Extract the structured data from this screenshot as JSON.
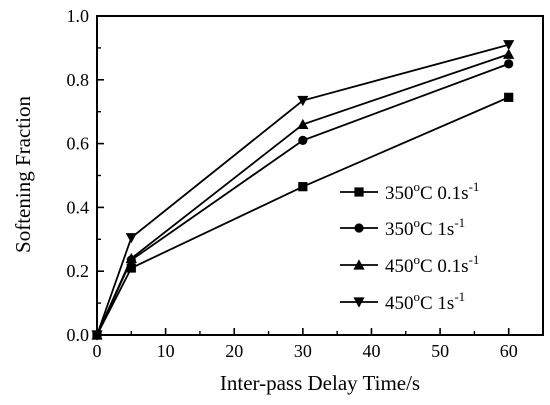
{
  "chart_data": {
    "type": "line",
    "title": "",
    "xlabel": "Inter-pass Delay Time/s",
    "ylabel": "Softening Fraction",
    "xlim": [
      0,
      65
    ],
    "ylim": [
      0.0,
      1.0
    ],
    "xticks": [
      0,
      10,
      20,
      30,
      40,
      50,
      60
    ],
    "xtick_labels": [
      "0",
      "10",
      "20",
      "30",
      "40",
      "50",
      "60"
    ],
    "yticks": [
      0.0,
      0.2,
      0.4,
      0.6,
      0.8,
      1.0
    ],
    "ytick_labels": [
      "0.0",
      "0.2",
      "0.4",
      "0.6",
      "0.8",
      "1.0"
    ],
    "grid": false,
    "legend_position": "bottom-right",
    "x": [
      0,
      5,
      30,
      60
    ],
    "series": [
      {
        "name": "350°C 0.1s⁻¹",
        "marker": "square",
        "values": [
          0.0,
          0.21,
          0.465,
          0.745
        ],
        "label_parts": {
          "temp": "350",
          "deg": "o",
          "unit": "C",
          "rate": "0.1s",
          "exp": "-1"
        }
      },
      {
        "name": "350°C 1s⁻¹",
        "marker": "circle",
        "values": [
          0.0,
          0.235,
          0.61,
          0.85
        ],
        "label_parts": {
          "temp": "350",
          "deg": "o",
          "unit": "C",
          "rate": "1s",
          "exp": "-1"
        }
      },
      {
        "name": "450°C 0.1s⁻¹",
        "marker": "triangle-up",
        "values": [
          0.0,
          0.24,
          0.66,
          0.88
        ],
        "label_parts": {
          "temp": "450",
          "deg": "o",
          "unit": "C",
          "rate": "0.1s",
          "exp": "-1"
        }
      },
      {
        "name": "450°C 1s⁻¹",
        "marker": "triangle-down",
        "values": [
          0.0,
          0.305,
          0.735,
          0.91
        ],
        "label_parts": {
          "temp": "450",
          "deg": "o",
          "unit": "C",
          "rate": "1s",
          "exp": "-1"
        }
      }
    ]
  }
}
